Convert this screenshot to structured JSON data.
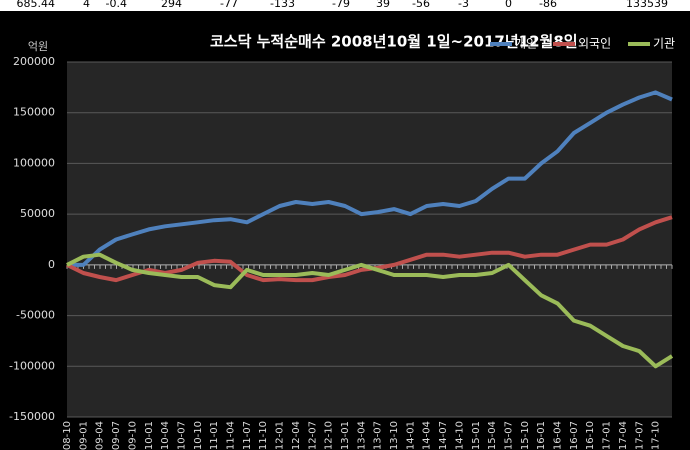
{
  "header_row": [
    "685.44",
    "4",
    "-0.4",
    "294",
    "-77",
    "-133",
    "-79",
    "39",
    "-56",
    "-3",
    "0",
    "-86",
    "133539"
  ],
  "chart_data": {
    "type": "line",
    "title": "코스닥 누적순매수 2008년10월 1일~2017년12월8일",
    "y_label": "억원",
    "categories": [
      "08-10",
      "09-01",
      "09-04",
      "09-07",
      "09-10",
      "10-01",
      "10-04",
      "10-07",
      "10-10",
      "11-01",
      "11-04",
      "11-07",
      "11-10",
      "12-01",
      "12-04",
      "12-07",
      "12-10",
      "13-01",
      "13-04",
      "13-07",
      "13-10",
      "14-01",
      "14-04",
      "14-07",
      "14-10",
      "15-01",
      "15-04",
      "15-07",
      "15-10",
      "16-01",
      "16-04",
      "16-07",
      "16-10",
      "17-01",
      "17-04",
      "17-07",
      "17-10",
      null
    ],
    "series": [
      {
        "name": "개인",
        "color": "#4f81bd",
        "values": [
          0,
          0,
          15000,
          25000,
          30000,
          35000,
          38000,
          40000,
          42000,
          44000,
          45000,
          42000,
          50000,
          58000,
          62000,
          60000,
          62000,
          58000,
          50000,
          52000,
          55000,
          50000,
          58000,
          60000,
          58000,
          63000,
          75000,
          85000,
          85000,
          100000,
          112000,
          130000,
          140000,
          150000,
          158000,
          165000,
          170000,
          163000
        ]
      },
      {
        "name": "외국인",
        "color": "#c0504d",
        "values": [
          0,
          -8000,
          -12000,
          -15000,
          -10000,
          -5000,
          -8000,
          -5000,
          2000,
          4000,
          3000,
          -10000,
          -15000,
          -14000,
          -15000,
          -15000,
          -12000,
          -10000,
          -5000,
          -3000,
          0,
          5000,
          10000,
          10000,
          8000,
          10000,
          12000,
          12000,
          8000,
          10000,
          10000,
          15000,
          20000,
          20000,
          25000,
          35000,
          42000,
          47000
        ]
      },
      {
        "name": "기관",
        "color": "#9bbb59",
        "values": [
          0,
          8000,
          10000,
          2000,
          -5000,
          -8000,
          -10000,
          -12000,
          -12000,
          -20000,
          -22000,
          -5000,
          -10000,
          -10000,
          -10000,
          -8000,
          -10000,
          -5000,
          0,
          -5000,
          -10000,
          -10000,
          -10000,
          -12000,
          -10000,
          -10000,
          -8000,
          0,
          -15000,
          -30000,
          -38000,
          -55000,
          -60000,
          -70000,
          -80000,
          -85000,
          -100000,
          -90000
        ]
      }
    ],
    "ylim": [
      -150000,
      200000
    ],
    "yticks": [
      -150000,
      -100000,
      -50000,
      0,
      50000,
      100000,
      150000,
      200000
    ],
    "grid": true,
    "legend": "top-right"
  }
}
